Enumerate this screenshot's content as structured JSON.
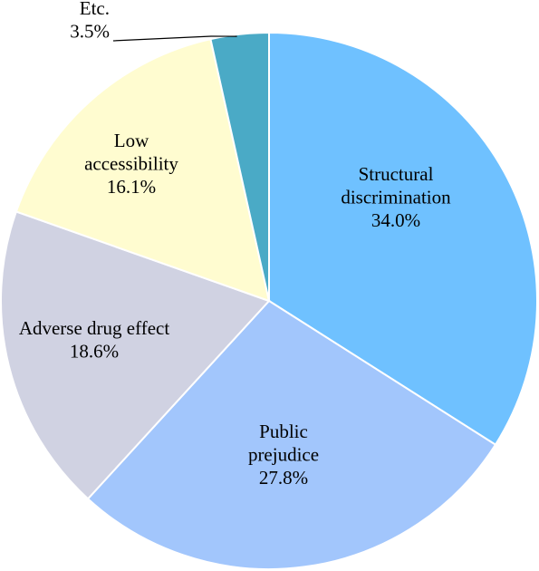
{
  "chart_data": {
    "type": "pie",
    "slices": [
      {
        "label": [
          "Structural",
          "discrimination"
        ],
        "value": 34.0,
        "pct": "34.0%",
        "color": "#6FC1FF"
      },
      {
        "label": [
          "Public",
          "prejudice"
        ],
        "value": 27.8,
        "pct": "27.8%",
        "color": "#A2C6FC"
      },
      {
        "label": [
          "Adverse drug effect"
        ],
        "value": 18.6,
        "pct": "18.6%",
        "color": "#D0D2E2"
      },
      {
        "label": [
          "Low",
          "accessibility"
        ],
        "value": 16.1,
        "pct": "16.1%",
        "color": "#FFFCD0"
      },
      {
        "label": [
          "Etc."
        ],
        "value": 3.5,
        "pct": "3.5%",
        "color": "#4AAAC6"
      }
    ],
    "start_direction": "12 o'clock",
    "rotation": "clockwise",
    "legend": "none"
  }
}
